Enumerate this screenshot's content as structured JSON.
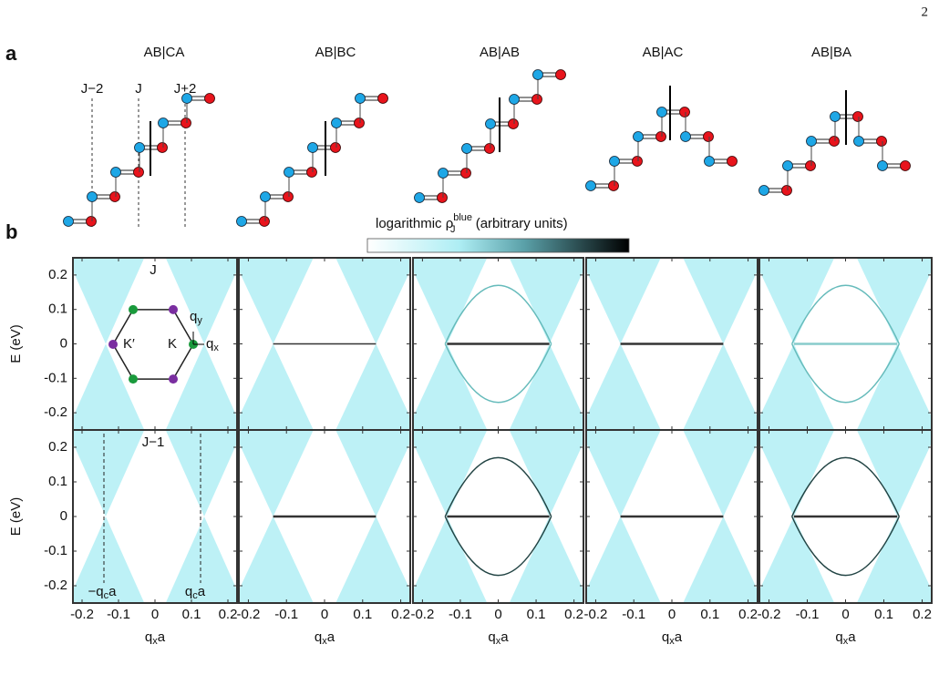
{
  "page_number": "2",
  "panel_a": {
    "label": "a",
    "titles": [
      "AB|CA",
      "AB|BC",
      "AB|AB",
      "AB|AC",
      "AB|BA"
    ],
    "layer_labels": [
      "J−2",
      "J",
      "J+2"
    ]
  },
  "panel_b": {
    "label": "b",
    "colorbar": {
      "text": "logarithmic ",
      "symbol": "ρ",
      "sup": "blue",
      "sub": "J",
      "tail": " (arbitrary units)"
    },
    "ylabel": "E (eV)",
    "xlabel": {
      "base": "q",
      "sub": "x",
      "tail": "a"
    },
    "xlim": [
      -0.225,
      0.225
    ],
    "ylim": [
      -0.25,
      0.25
    ],
    "xticks": [
      -0.2,
      -0.1,
      0,
      0.1,
      0.2
    ],
    "yticks": [
      0.2,
      0.1,
      0,
      -0.1,
      -0.2
    ],
    "row_labels": [
      "J",
      "J−1"
    ],
    "inset": {
      "K_prime": "K′",
      "K": "K",
      "qy": {
        "base": "q",
        "sub": "y"
      },
      "qx": {
        "base": "q",
        "sub": "x"
      }
    },
    "markers": [
      {
        "base": "−q",
        "sub": "c",
        "tail": "a"
      },
      {
        "base": "q",
        "sub": "c",
        "tail": "a"
      }
    ]
  }
}
